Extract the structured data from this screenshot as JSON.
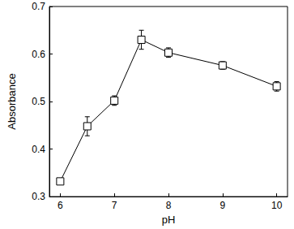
{
  "chart_data": {
    "type": "line",
    "x_label": "pH",
    "y_label": "Absorbance",
    "x": [
      6,
      6.5,
      7,
      7.5,
      8,
      9,
      10
    ],
    "values": [
      0.332,
      0.448,
      0.502,
      0.63,
      0.603,
      0.576,
      0.532
    ],
    "errors": [
      0.005,
      0.02,
      0.01,
      0.02,
      0.01,
      0.008,
      0.01
    ],
    "color": "#000000",
    "marker": "square",
    "xlim": [
      5.8,
      10.2
    ],
    "xticks": [
      6,
      7,
      8,
      9,
      10
    ],
    "ylim": [
      0.3,
      0.7
    ],
    "yticks": [
      0.3,
      0.4,
      0.5,
      0.6,
      0.7
    ],
    "grid": false
  }
}
